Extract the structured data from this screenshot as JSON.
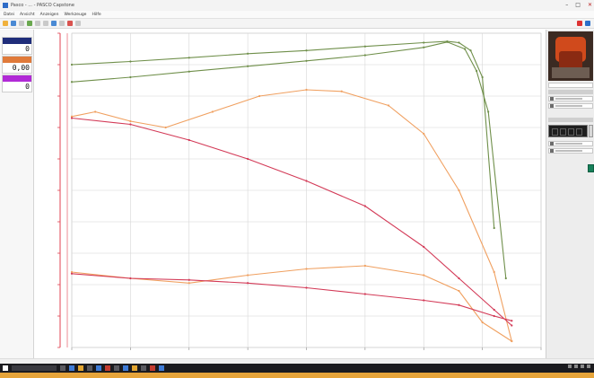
{
  "window": {
    "title": "Pasco - ... - PASCO Capstone"
  },
  "menu": {
    "items": [
      "Datei",
      "Ansicht",
      "Anzeigen",
      "Werkzeuge",
      "Hilfe"
    ]
  },
  "meters": [
    {
      "value": "0"
    },
    {
      "value": "0,00"
    },
    {
      "value": "0"
    }
  ],
  "statusbar": {
    "text": ""
  },
  "colors": {
    "green_series": "#6f8f4a",
    "orange_series": "#f0a060",
    "red_series": "#d33a57",
    "axis": "#e04050",
    "grid": "#d6d6d6"
  },
  "chart_data": {
    "type": "line",
    "title": "",
    "xlabel": "",
    "ylabel": "",
    "xlim": [
      0,
      400
    ],
    "ylim": [
      0,
      10
    ],
    "grid": true,
    "series": [
      {
        "color": "#6f8f4a",
        "x": [
          0,
          50,
          100,
          150,
          200,
          250,
          300,
          320,
          330,
          340,
          350,
          360
        ],
        "y": [
          9.0,
          9.1,
          9.22,
          9.35,
          9.45,
          9.58,
          9.7,
          9.74,
          9.7,
          9.45,
          8.6,
          3.8
        ]
      },
      {
        "color": "#6f8f4a",
        "x": [
          0,
          50,
          100,
          150,
          200,
          250,
          300,
          320,
          335,
          345,
          355,
          370
        ],
        "y": [
          8.45,
          8.6,
          8.78,
          8.95,
          9.12,
          9.3,
          9.55,
          9.72,
          9.5,
          8.8,
          7.5,
          2.2
        ]
      },
      {
        "color": "#f0a060",
        "x": [
          0,
          20,
          50,
          80,
          120,
          160,
          200,
          230,
          270,
          300,
          330,
          360,
          375
        ],
        "y": [
          7.35,
          7.5,
          7.2,
          7.0,
          7.5,
          8.0,
          8.2,
          8.15,
          7.7,
          6.8,
          5.0,
          2.4,
          0.2
        ]
      },
      {
        "color": "#d33a57",
        "x": [
          0,
          50,
          100,
          150,
          200,
          250,
          300,
          330,
          360,
          375
        ],
        "y": [
          7.3,
          7.1,
          6.6,
          6.0,
          5.3,
          4.5,
          3.2,
          2.2,
          1.2,
          0.7
        ]
      },
      {
        "color": "#f0a060",
        "x": [
          0,
          50,
          100,
          150,
          200,
          250,
          300,
          330,
          350,
          375
        ],
        "y": [
          2.4,
          2.2,
          2.05,
          2.3,
          2.5,
          2.6,
          2.3,
          1.8,
          0.8,
          0.2
        ]
      },
      {
        "color": "#d33a57",
        "x": [
          0,
          50,
          100,
          150,
          200,
          250,
          300,
          330,
          360,
          375
        ],
        "y": [
          2.35,
          2.2,
          2.15,
          2.05,
          1.9,
          1.7,
          1.5,
          1.35,
          1.0,
          0.85
        ]
      }
    ]
  }
}
